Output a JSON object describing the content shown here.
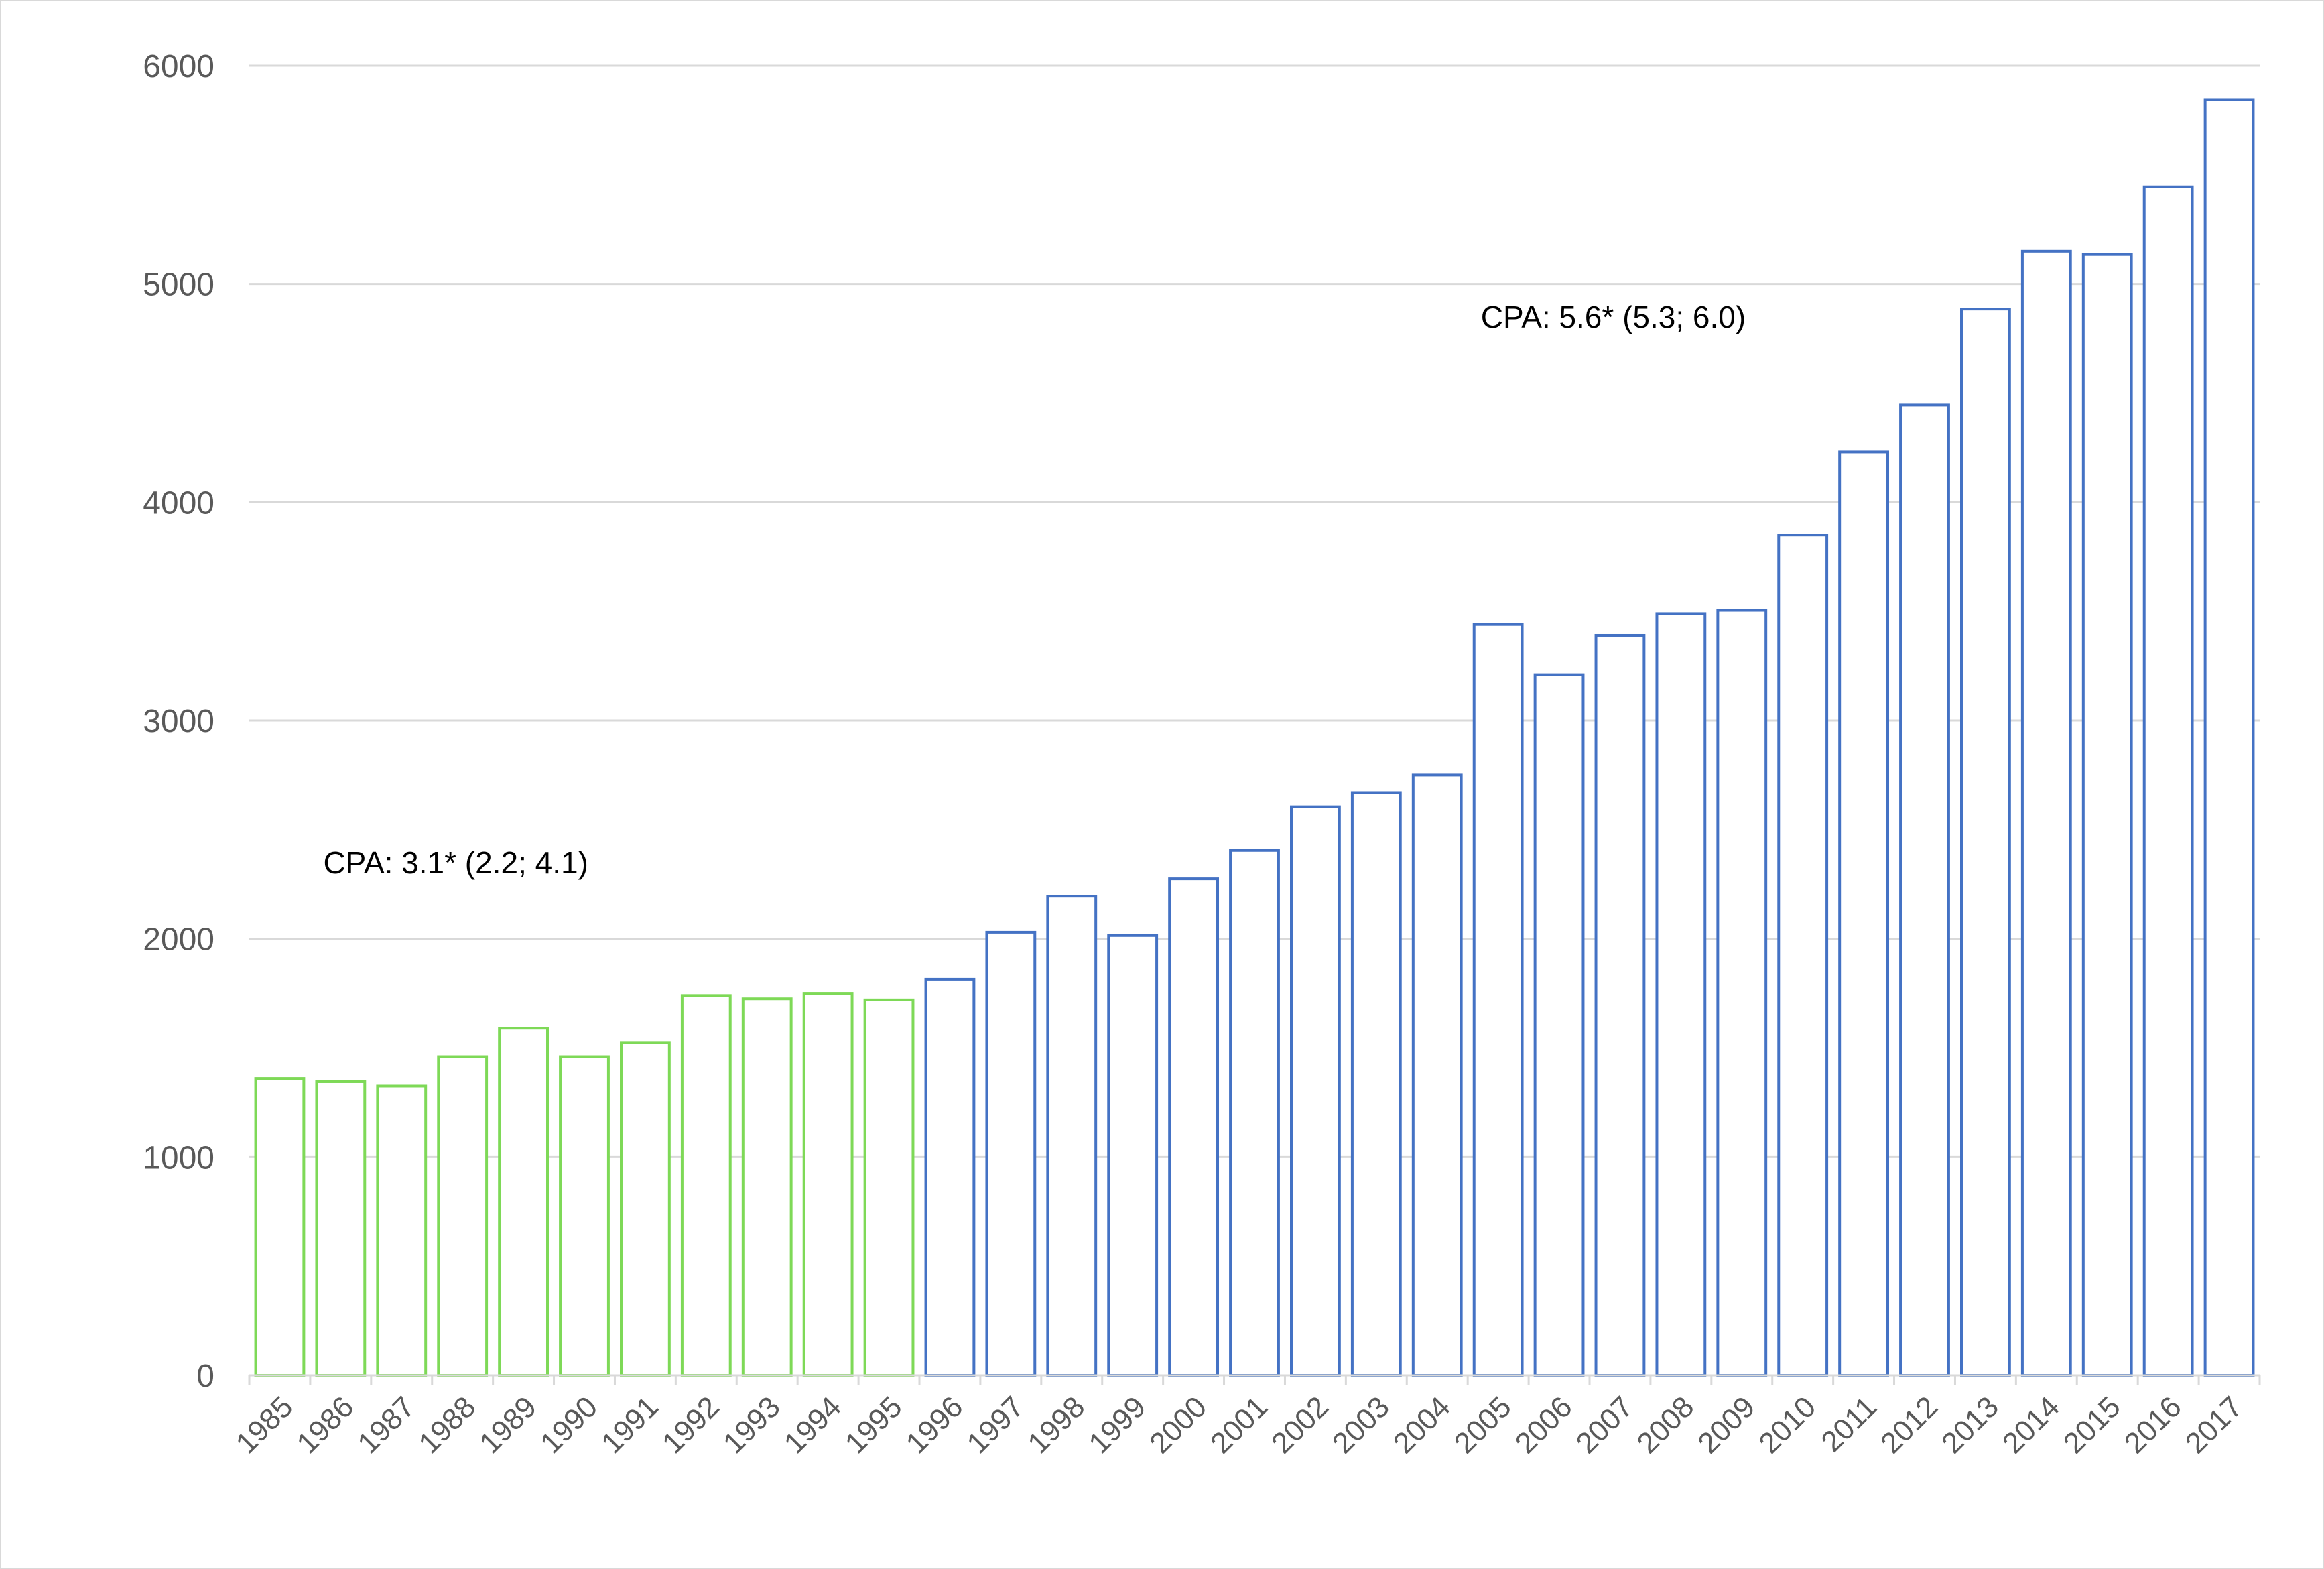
{
  "chart_data": {
    "type": "bar",
    "categories": [
      "1985",
      "1986",
      "1987",
      "1988",
      "1989",
      "1990",
      "1991",
      "1992",
      "1993",
      "1994",
      "1995",
      "1996",
      "1997",
      "1998",
      "1999",
      "2000",
      "2001",
      "2002",
      "2003",
      "2004",
      "2005",
      "2006",
      "2007",
      "2008",
      "2009",
      "2010",
      "2011",
      "2012",
      "2013",
      "2014",
      "2015",
      "2016",
      "2017"
    ],
    "values": [
      1360,
      1345,
      1325,
      1460,
      1590,
      1460,
      1525,
      1740,
      1725,
      1750,
      1720,
      1815,
      2030,
      2195,
      2015,
      2275,
      2405,
      2605,
      2670,
      2750,
      3440,
      3210,
      3390,
      3490,
      3505,
      3850,
      4230,
      4445,
      4885,
      5150,
      5135,
      5445,
      5845
    ],
    "ylim": [
      0,
      6000
    ],
    "yticks": [
      0,
      1000,
      2000,
      3000,
      4000,
      5000,
      6000
    ],
    "grid": true,
    "segments": [
      {
        "from": "1985",
        "to": "1995",
        "color": "#7ed957"
      },
      {
        "from": "1996",
        "to": "2017",
        "color": "#4472c4"
      }
    ],
    "annotations": [
      {
        "text": "CPA: 3.1* (2.2; 4.1)",
        "x": "1988",
        "y": 2300
      },
      {
        "text": "CPA: 5.6* (5.3; 6.0)",
        "x": "2007",
        "y": 4800
      }
    ],
    "title": "",
    "xlabel": "",
    "ylabel": ""
  }
}
